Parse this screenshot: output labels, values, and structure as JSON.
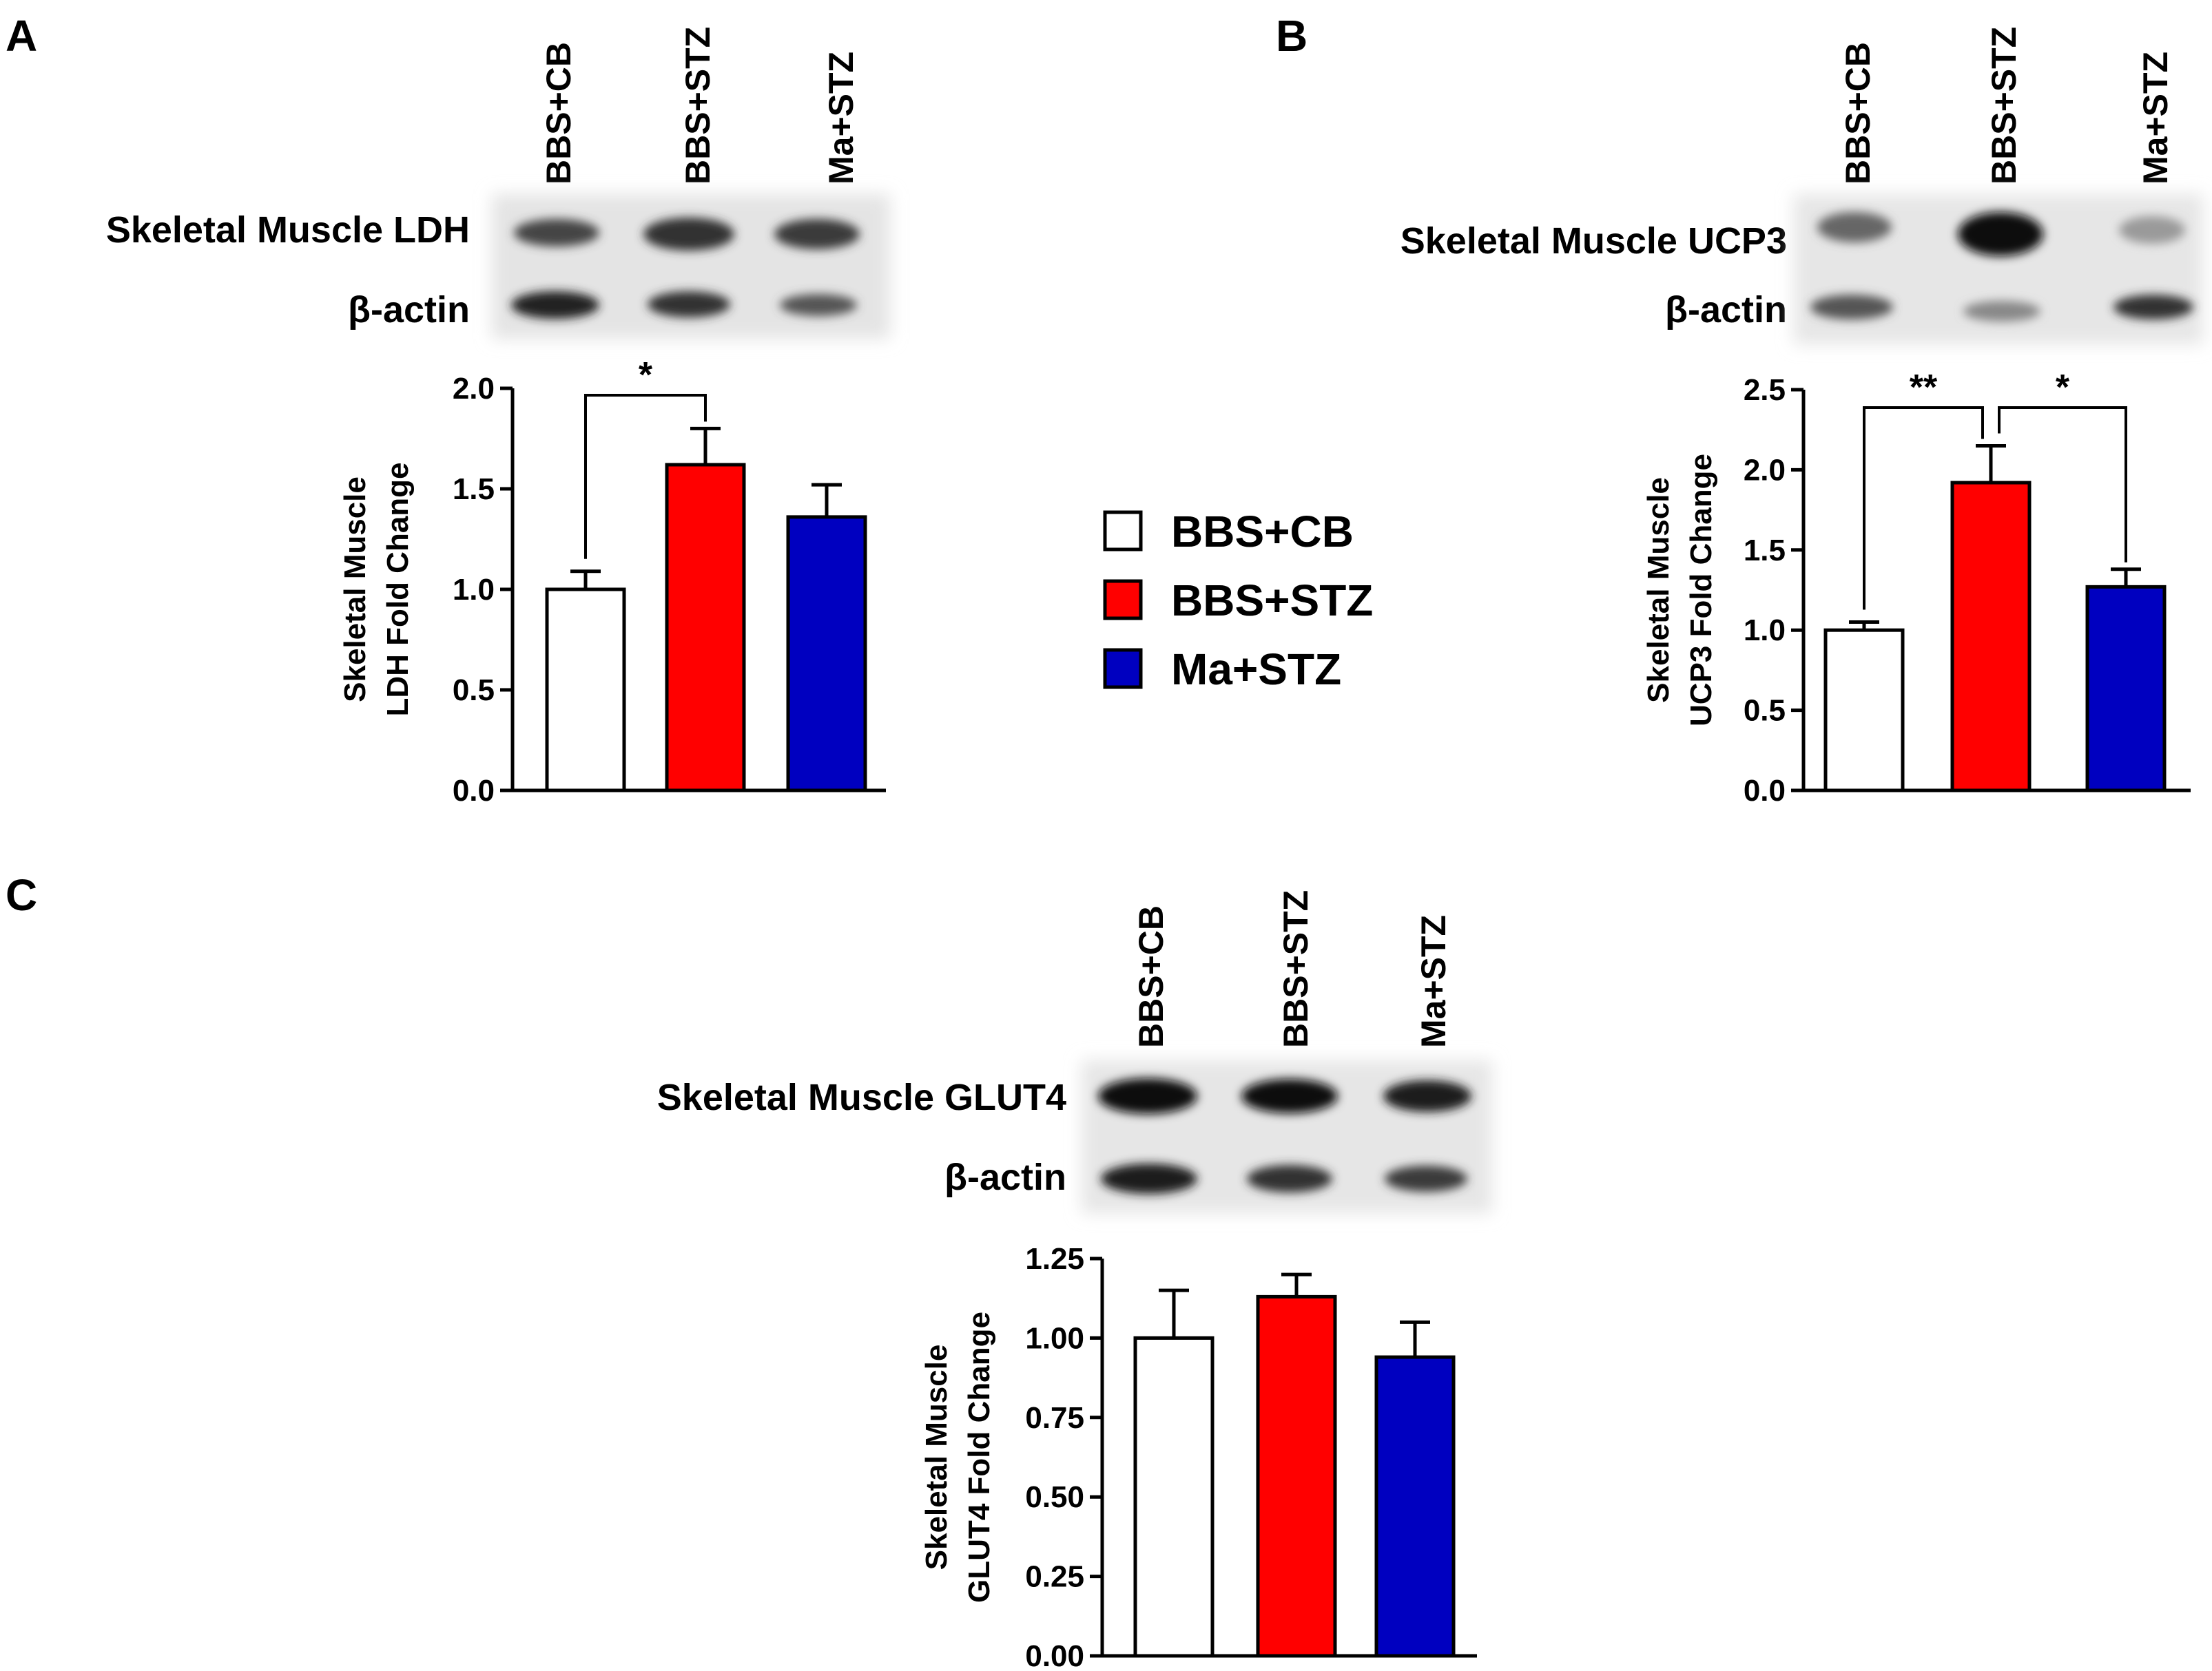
{
  "colors": {
    "BBS+CB": "#ffffff",
    "BBS+STZ": "#ff0000",
    "Ma+STZ": "#0000c0"
  },
  "legend": {
    "items": [
      "BBS+CB",
      "BBS+STZ",
      "Ma+STZ"
    ]
  },
  "blots": {
    "A": {
      "lanes": [
        "BBS+CB",
        "BBS+STZ",
        "Ma+STZ"
      ],
      "target_label": "Skeletal Muscle LDH",
      "control_label": "β-actin"
    },
    "B": {
      "lanes": [
        "BBS+CB",
        "BBS+STZ",
        "Ma+STZ"
      ],
      "target_label": "Skeletal Muscle UCP3",
      "control_label": "β-actin"
    },
    "C": {
      "lanes": [
        "BBS+CB",
        "BBS+STZ",
        "Ma+STZ"
      ],
      "target_label": "Skeletal Muscle GLUT4",
      "control_label": "β-actin"
    }
  },
  "chart_data": [
    {
      "panel": "A",
      "type": "bar",
      "categories": [
        "BBS+CB",
        "BBS+STZ",
        "Ma+STZ"
      ],
      "values": [
        1.0,
        1.62,
        1.36
      ],
      "errors": [
        0.09,
        0.18,
        0.16
      ],
      "ylabel_line1": "Skeletal Muscle",
      "ylabel_line2": "LDH Fold Change",
      "ylim": [
        0,
        2.0
      ],
      "yticks": [
        "0.0",
        "0.5",
        "1.0",
        "1.5",
        "2.0"
      ],
      "significance": [
        {
          "from": "BBS+CB",
          "to": "BBS+STZ",
          "label": "*"
        }
      ]
    },
    {
      "panel": "B",
      "type": "bar",
      "categories": [
        "BBS+CB",
        "BBS+STZ",
        "Ma+STZ"
      ],
      "values": [
        1.0,
        1.92,
        1.27
      ],
      "errors": [
        0.05,
        0.23,
        0.11
      ],
      "ylabel_line1": "Skeletal Muscle",
      "ylabel_line2": "UCP3 Fold Change",
      "ylim": [
        0,
        2.5
      ],
      "yticks": [
        "0.0",
        "0.5",
        "1.0",
        "1.5",
        "2.0",
        "2.5"
      ],
      "significance": [
        {
          "from": "BBS+CB",
          "to": "BBS+STZ",
          "label": "**"
        },
        {
          "from": "BBS+STZ",
          "to": "Ma+STZ",
          "label": "*"
        }
      ]
    },
    {
      "panel": "C",
      "type": "bar",
      "categories": [
        "BBS+CB",
        "BBS+STZ",
        "Ma+STZ"
      ],
      "values": [
        1.0,
        1.13,
        0.94
      ],
      "errors": [
        0.15,
        0.07,
        0.11
      ],
      "ylabel_line1": "Skeletal Muscle",
      "ylabel_line2": "GLUT4 Fold Change",
      "ylim": [
        0,
        1.25
      ],
      "yticks": [
        "0.00",
        "0.25",
        "0.50",
        "0.75",
        "1.00",
        "1.25"
      ],
      "significance": []
    }
  ]
}
